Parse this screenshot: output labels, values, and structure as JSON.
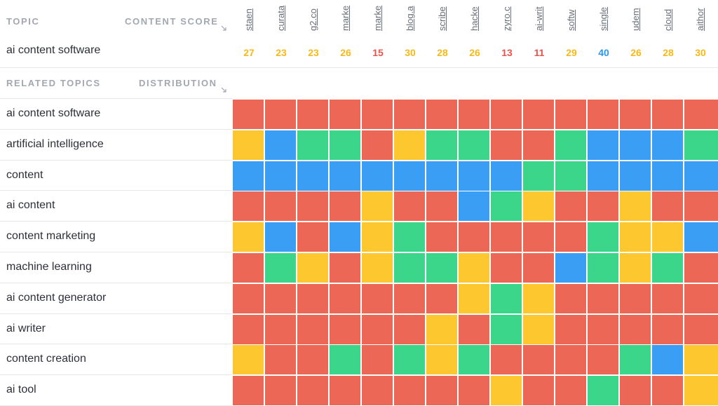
{
  "headers": {
    "topic": "TOPIC",
    "content_score": "CONTENT SCORE",
    "related_topics": "RELATED TOPICS",
    "distribution": "DISTRIBUTION"
  },
  "topic": "ai content software",
  "colors": {
    "red": "#ec6756",
    "yellow": "#fdc72f",
    "green": "#3bd68a",
    "blue": "#3a9ef5",
    "score_yellow": "#f6b91a",
    "score_red": "#e5534b",
    "score_blue": "#2f97e8"
  },
  "sites": [
    {
      "label": "staen",
      "score": "27",
      "tone": "yellow"
    },
    {
      "label": "curata",
      "score": "23",
      "tone": "yellow"
    },
    {
      "label": "g2.co",
      "score": "23",
      "tone": "yellow"
    },
    {
      "label": "marke",
      "score": "26",
      "tone": "yellow"
    },
    {
      "label": "marke",
      "score": "15",
      "tone": "red"
    },
    {
      "label": "blog.a",
      "score": "30",
      "tone": "yellow"
    },
    {
      "label": "scribe",
      "score": "28",
      "tone": "yellow"
    },
    {
      "label": "hacke",
      "score": "26",
      "tone": "yellow"
    },
    {
      "label": "zyro.c",
      "score": "13",
      "tone": "red"
    },
    {
      "label": "ai-writ",
      "score": "11",
      "tone": "red"
    },
    {
      "label": "softw",
      "score": "29",
      "tone": "yellow"
    },
    {
      "label": "single",
      "score": "40",
      "tone": "blue"
    },
    {
      "label": "udem",
      "score": "26",
      "tone": "yellow"
    },
    {
      "label": "cloud",
      "score": "28",
      "tone": "yellow"
    },
    {
      "label": "aithor",
      "score": "30",
      "tone": "yellow"
    }
  ],
  "related": [
    {
      "label": "ai content software",
      "cells": [
        "R",
        "R",
        "R",
        "R",
        "R",
        "R",
        "R",
        "R",
        "R",
        "R",
        "R",
        "R",
        "R",
        "R",
        "R"
      ]
    },
    {
      "label": "artificial intelligence",
      "cells": [
        "Y",
        "B",
        "G",
        "G",
        "R",
        "Y",
        "G",
        "G",
        "R",
        "R",
        "G",
        "B",
        "B",
        "B",
        "G"
      ]
    },
    {
      "label": "content",
      "cells": [
        "B",
        "B",
        "B",
        "B",
        "B",
        "B",
        "B",
        "B",
        "B",
        "G",
        "G",
        "B",
        "B",
        "B",
        "B"
      ]
    },
    {
      "label": "ai content",
      "cells": [
        "R",
        "R",
        "R",
        "R",
        "Y",
        "R",
        "R",
        "B",
        "G",
        "Y",
        "R",
        "R",
        "Y",
        "R",
        "R"
      ]
    },
    {
      "label": "content marketing",
      "cells": [
        "Y",
        "B",
        "R",
        "B",
        "Y",
        "G",
        "R",
        "R",
        "R",
        "R",
        "R",
        "G",
        "Y",
        "Y",
        "B"
      ]
    },
    {
      "label": "machine learning",
      "cells": [
        "R",
        "G",
        "Y",
        "R",
        "Y",
        "G",
        "G",
        "Y",
        "R",
        "R",
        "B",
        "G",
        "Y",
        "G",
        "R"
      ]
    },
    {
      "label": "ai content generator",
      "cells": [
        "R",
        "R",
        "R",
        "R",
        "R",
        "R",
        "R",
        "Y",
        "G",
        "Y",
        "R",
        "R",
        "R",
        "R",
        "R"
      ]
    },
    {
      "label": "ai writer",
      "cells": [
        "R",
        "R",
        "R",
        "R",
        "R",
        "R",
        "Y",
        "R",
        "G",
        "Y",
        "R",
        "R",
        "R",
        "R",
        "R"
      ]
    },
    {
      "label": "content creation",
      "cells": [
        "Y",
        "R",
        "R",
        "G",
        "R",
        "G",
        "Y",
        "G",
        "R",
        "R",
        "R",
        "R",
        "G",
        "B",
        "Y"
      ]
    },
    {
      "label": "ai tool",
      "cells": [
        "R",
        "R",
        "R",
        "R",
        "R",
        "R",
        "R",
        "R",
        "Y",
        "R",
        "R",
        "G",
        "R",
        "R",
        "Y"
      ]
    }
  ]
}
